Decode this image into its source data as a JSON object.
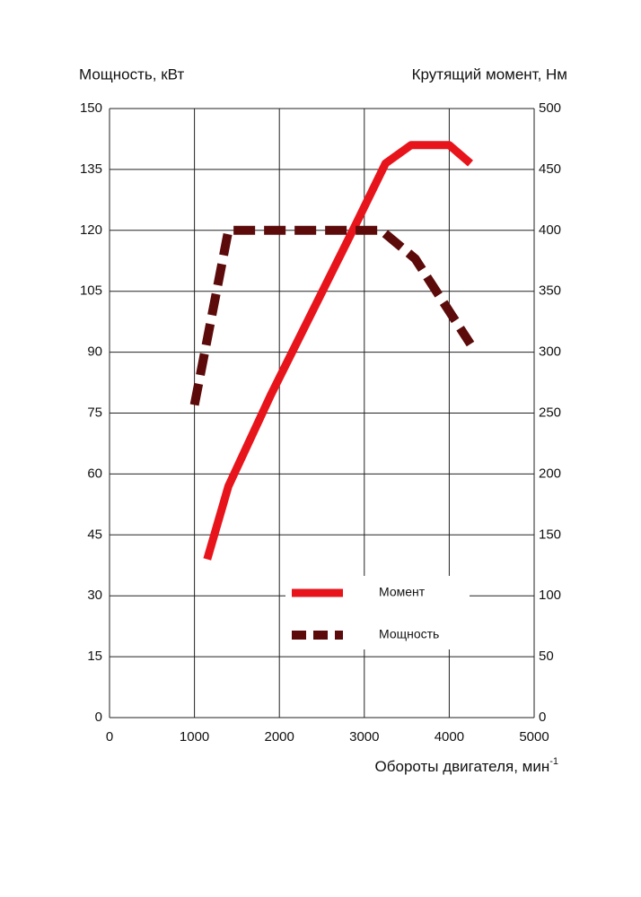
{
  "chart_data": {
    "type": "line",
    "ylabel": "Мощность, кВт",
    "y2label": "Крутящий момент, Нм",
    "xlabel": "Обороты двигателя, мин",
    "xlabel_superscript": "-1",
    "xlim": [
      0,
      5000
    ],
    "xticks": [
      0,
      1000,
      2000,
      3000,
      4000,
      5000
    ],
    "ylim": [
      0,
      150
    ],
    "yticks": [
      0,
      15,
      30,
      45,
      60,
      75,
      90,
      105,
      120,
      135,
      150
    ],
    "y2lim": [
      0,
      500
    ],
    "y2ticks": [
      0,
      50,
      100,
      150,
      200,
      250,
      300,
      350,
      400,
      450,
      500
    ],
    "grid": true,
    "series": [
      {
        "name": "Момент",
        "color": "#e8141b",
        "axis": "y2",
        "dash": false,
        "x": [
          1150,
          1400,
          1900,
          2900,
          3250,
          3550,
          4000,
          4250
        ],
        "values": [
          130,
          190,
          265,
          405,
          455,
          470,
          470,
          455
        ]
      },
      {
        "name": "Мощность",
        "color": "#5c0a0a",
        "dash": true,
        "x": [
          1000,
          1400,
          3200,
          3600,
          4250
        ],
        "values": [
          77,
          120,
          120,
          113,
          92
        ]
      }
    ]
  }
}
